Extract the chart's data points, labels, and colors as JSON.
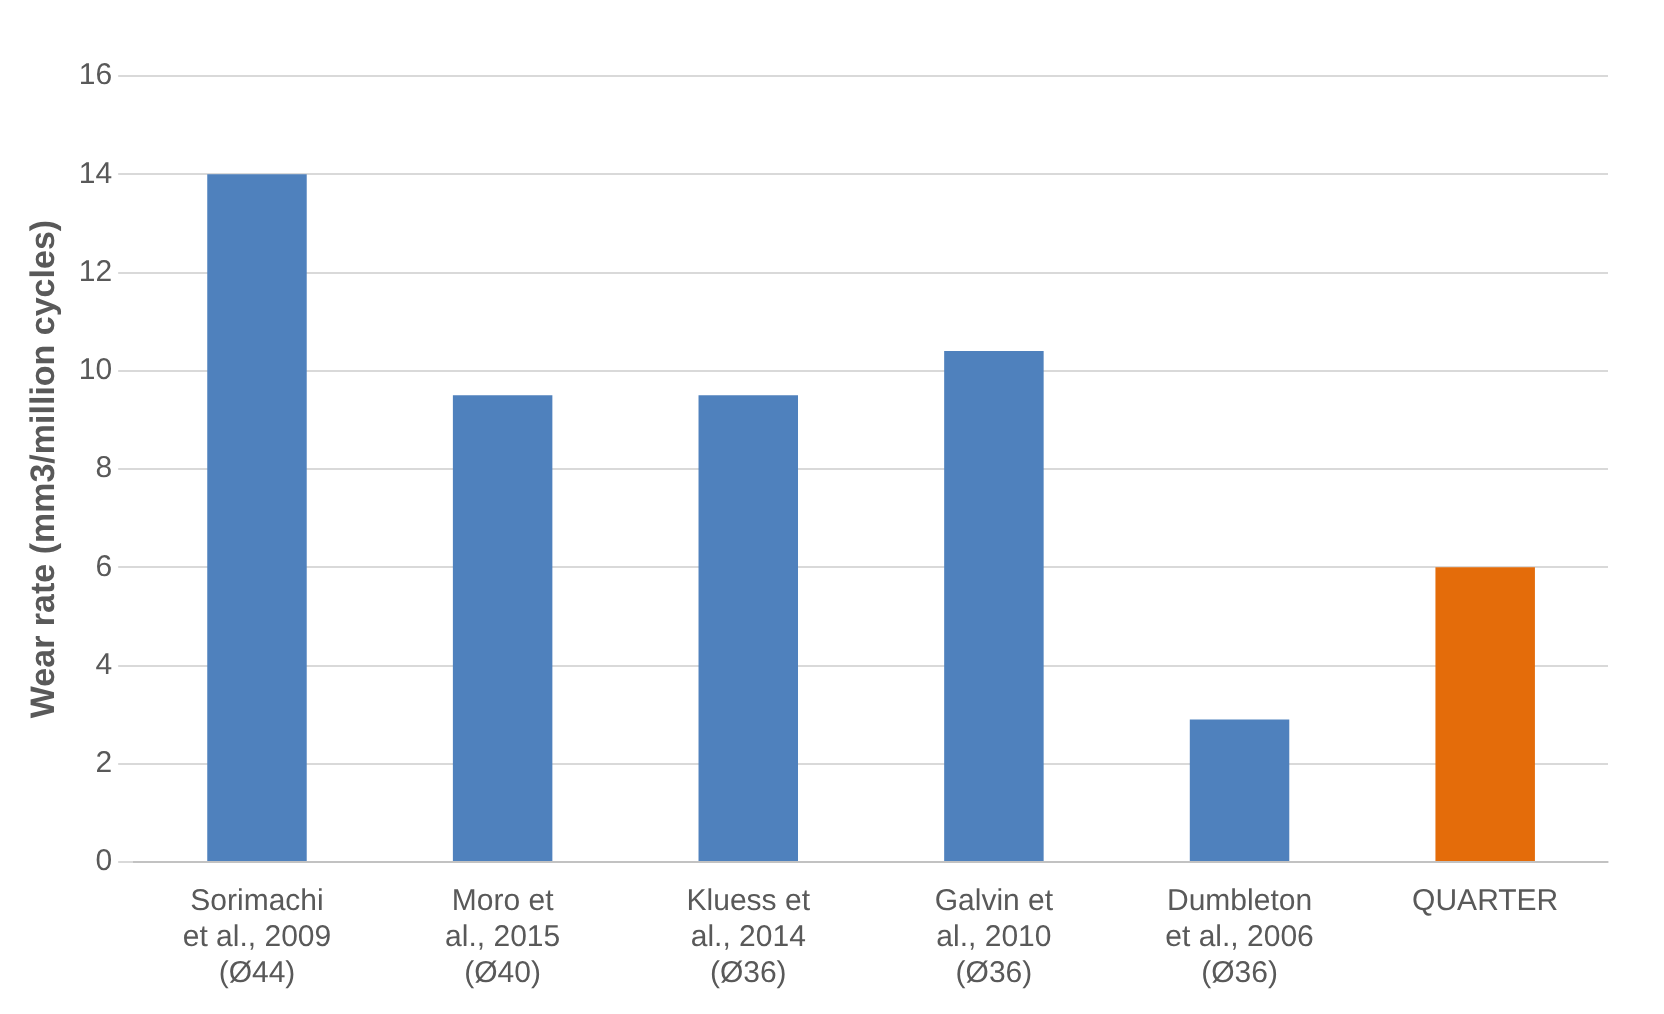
{
  "chart_data": {
    "type": "bar",
    "ylabel": "Wear rate (mm3/million cycles)",
    "categories": [
      "Sorimachi\net al., 2009\n(Ø44)",
      "Moro et\nal., 2015\n(Ø40)",
      "Kluess et\nal., 2014\n(Ø36)",
      "Galvin et\nal., 2010\n(Ø36)",
      "Dumbleton\net al., 2006\n(Ø36)",
      "QUARTER"
    ],
    "values": [
      14,
      9.5,
      9.5,
      10.4,
      2.9,
      6
    ],
    "colors": [
      "#4f81bd",
      "#4f81bd",
      "#4f81bd",
      "#4f81bd",
      "#4f81bd",
      "#e46c0a"
    ],
    "ylim": [
      0,
      16
    ],
    "yticks": [
      0,
      2,
      4,
      6,
      8,
      10,
      12,
      14,
      16
    ],
    "grid": "y",
    "legend": false
  }
}
